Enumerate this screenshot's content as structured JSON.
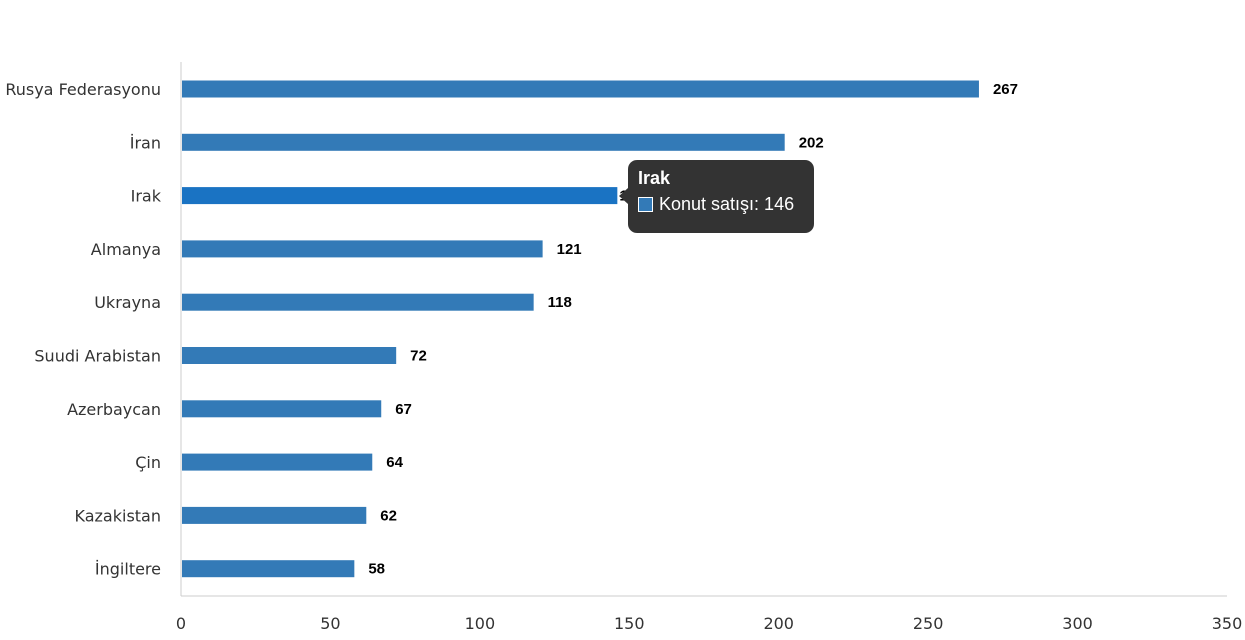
{
  "chart_data": {
    "type": "bar",
    "orientation": "horizontal",
    "categories": [
      "Rusya Federasyonu",
      "İran",
      "Irak",
      "Almanya",
      "Ukrayna",
      "Suudi Arabistan",
      "Azerbaycan",
      "Çin",
      "Kazakistan",
      "İngiltere"
    ],
    "series": [
      {
        "name": "Konut satışı",
        "values": [
          267,
          202,
          146,
          121,
          118,
          72,
          67,
          64,
          62,
          58
        ]
      }
    ],
    "xlim": [
      0,
      350
    ],
    "xticks": [
      0,
      50,
      100,
      150,
      200,
      250,
      300,
      350
    ],
    "grid": false,
    "legend": "none",
    "bar_color": "#337ab7",
    "highlight_color": "#1a73c3",
    "highlight_index": 2
  },
  "tooltip": {
    "title": "Irak",
    "series_label": "Konut satışı: 146",
    "swatch_color": "#337ab7"
  }
}
